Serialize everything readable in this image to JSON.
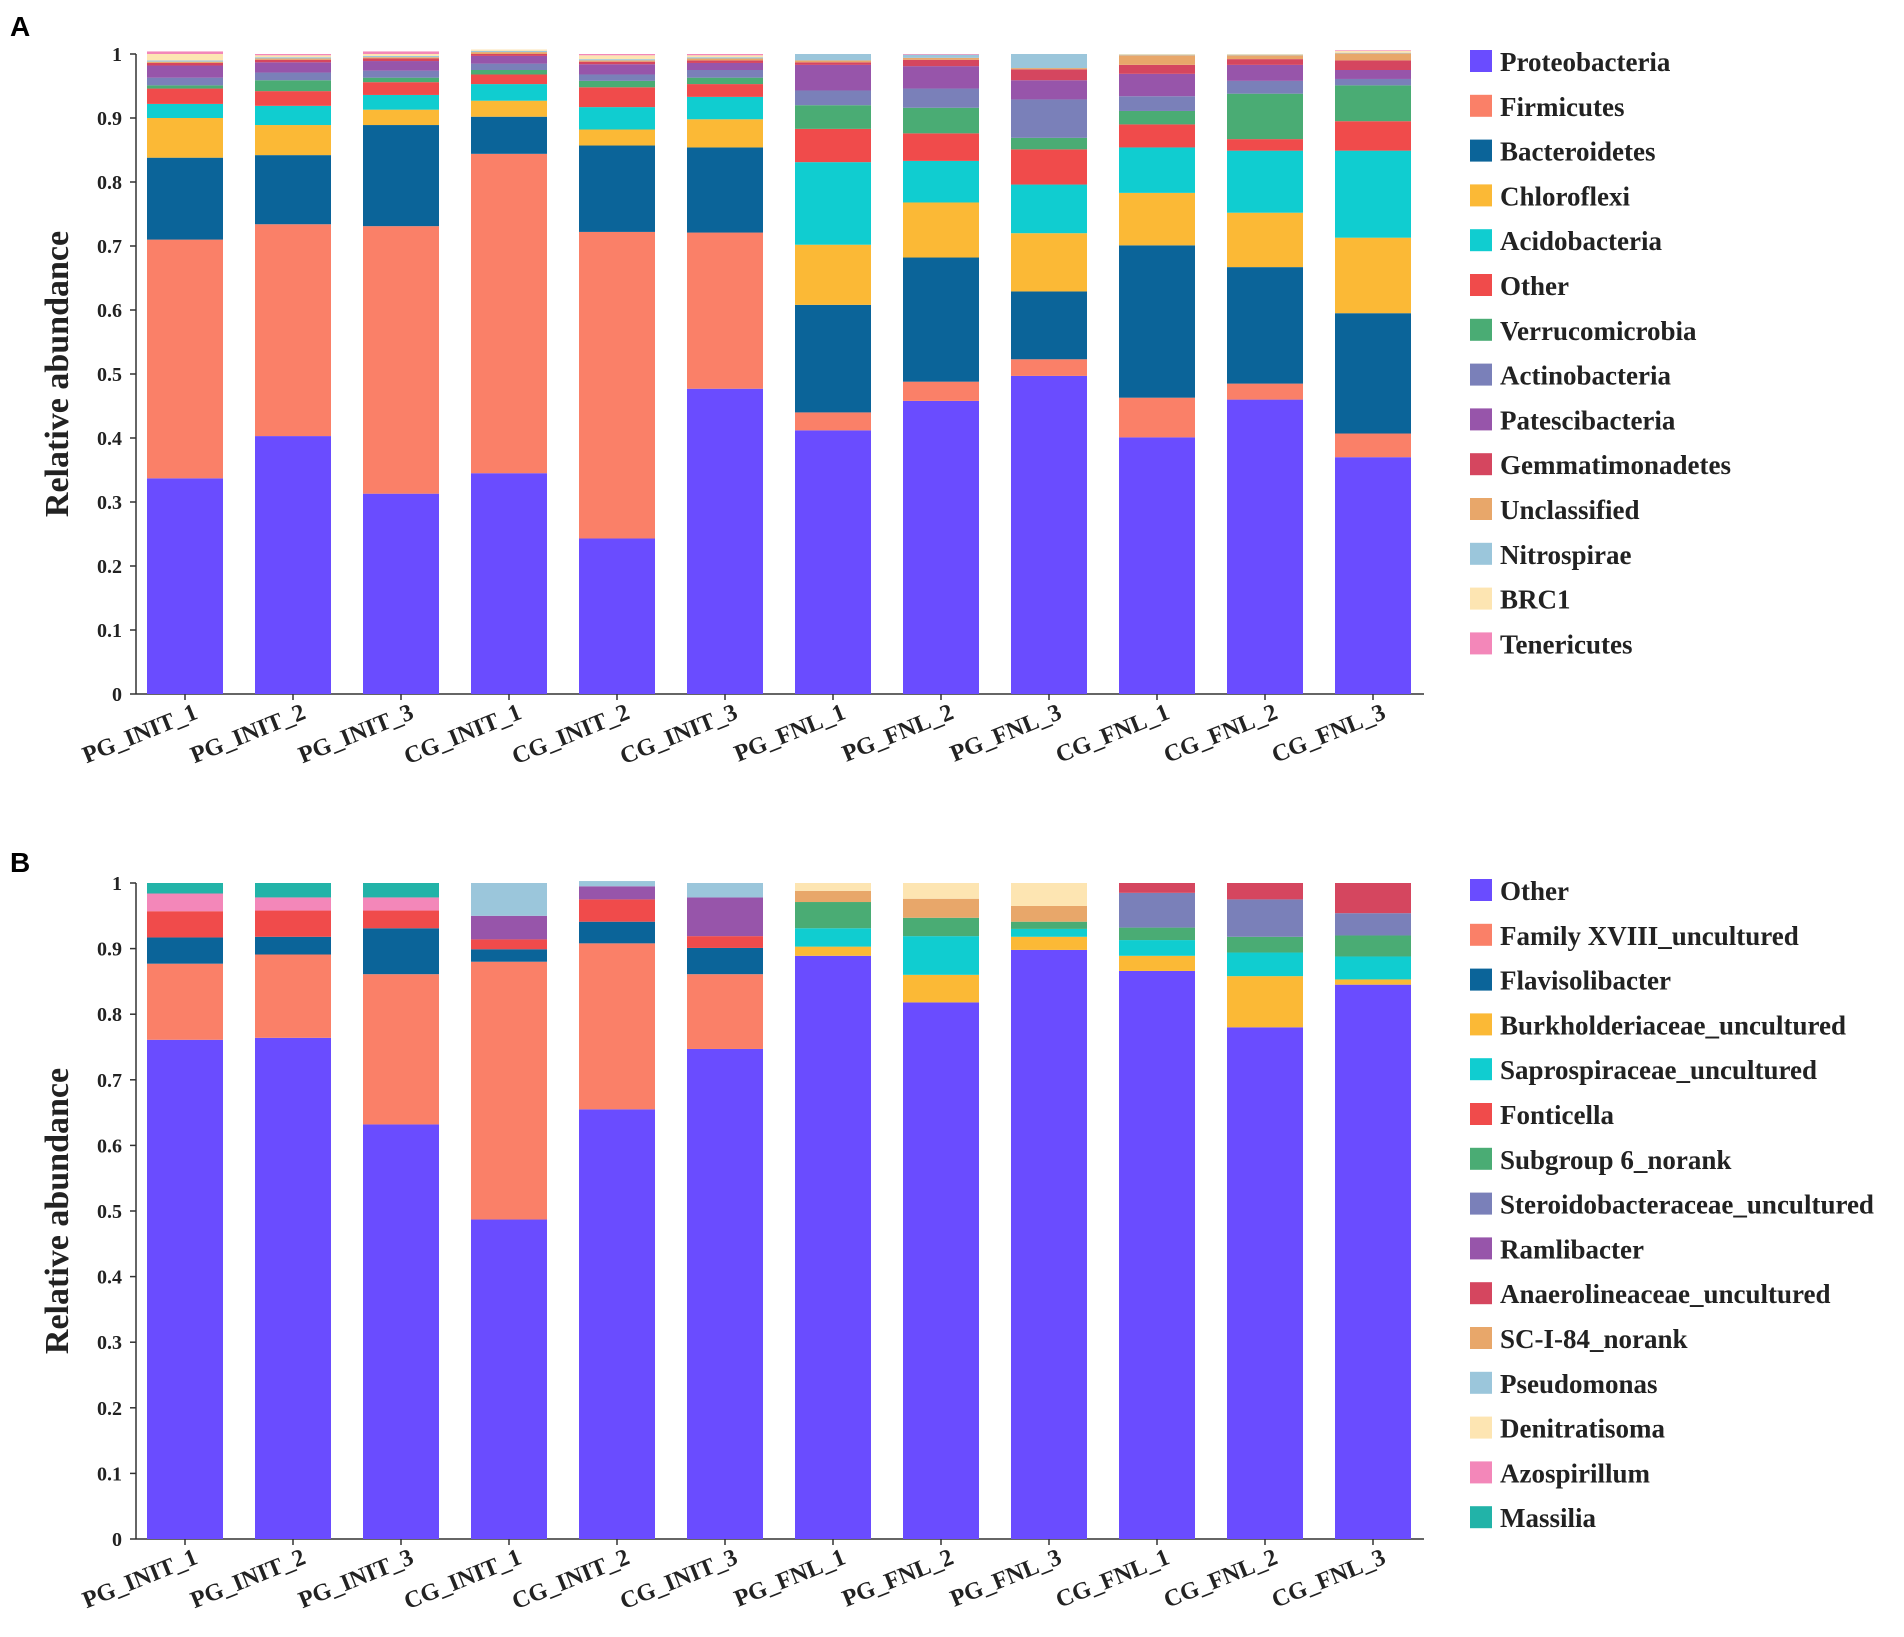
{
  "chart_data": [
    {
      "panel": "A",
      "type": "bar",
      "stacked": true,
      "ylabel": "Relative abundance",
      "ylim": [
        0,
        1
      ],
      "yticks": [
        "0",
        "0.1",
        "0.2",
        "0.3",
        "0.4",
        "0.5",
        "0.6",
        "0.7",
        "0.8",
        "0.9",
        "1"
      ],
      "categories": [
        "PG_INIT_1",
        "PG_INIT_2",
        "PG_INIT_3",
        "CG_INIT_1",
        "CG_INIT_2",
        "CG_INIT_3",
        "PG_FNL_1",
        "PG_FNL_2",
        "PG_FNL_3",
        "CG_FNL_1",
        "CG_FNL_2",
        "CG_FNL_3"
      ],
      "series": [
        {
          "name": "Proteobacteria",
          "color": "#6a4cff",
          "values": [
            0.337,
            0.403,
            0.313,
            0.345,
            0.243,
            0.477,
            0.412,
            0.458,
            0.497,
            0.401,
            0.46,
            0.37
          ]
        },
        {
          "name": "Firmicutes",
          "color": "#fa8068",
          "values": [
            0.373,
            0.331,
            0.418,
            0.499,
            0.479,
            0.244,
            0.028,
            0.03,
            0.026,
            0.062,
            0.025,
            0.037
          ]
        },
        {
          "name": "Bacteroidetes",
          "color": "#0b6499",
          "values": [
            0.128,
            0.108,
            0.158,
            0.058,
            0.135,
            0.133,
            0.168,
            0.194,
            0.106,
            0.238,
            0.182,
            0.188
          ]
        },
        {
          "name": "Chloroflexi",
          "color": "#fbb936",
          "values": [
            0.062,
            0.047,
            0.024,
            0.025,
            0.025,
            0.044,
            0.094,
            0.086,
            0.091,
            0.082,
            0.085,
            0.118
          ]
        },
        {
          "name": "Acidobacteria",
          "color": "#10cdd0",
          "values": [
            0.022,
            0.03,
            0.023,
            0.026,
            0.035,
            0.035,
            0.129,
            0.065,
            0.076,
            0.071,
            0.097,
            0.136
          ]
        },
        {
          "name": "Other",
          "color": "#f04b4b",
          "values": [
            0.024,
            0.023,
            0.02,
            0.015,
            0.031,
            0.02,
            0.052,
            0.043,
            0.055,
            0.036,
            0.018,
            0.046
          ]
        },
        {
          "name": "Verrucomicrobia",
          "color": "#4aac74",
          "values": [
            0.005,
            0.017,
            0.007,
            0.007,
            0.01,
            0.01,
            0.037,
            0.04,
            0.018,
            0.021,
            0.071,
            0.056
          ]
        },
        {
          "name": "Actinobacteria",
          "color": "#7a80b9",
          "values": [
            0.012,
            0.012,
            0.011,
            0.01,
            0.01,
            0.012,
            0.023,
            0.03,
            0.06,
            0.023,
            0.02,
            0.01
          ]
        },
        {
          "name": "Patescibacteria",
          "color": "#9755aa",
          "values": [
            0.019,
            0.016,
            0.015,
            0.012,
            0.016,
            0.011,
            0.04,
            0.035,
            0.03,
            0.035,
            0.025,
            0.014
          ]
        },
        {
          "name": "Gemmatimonadetes",
          "color": "#d5465f",
          "values": [
            0.004,
            0.004,
            0.004,
            0.003,
            0.004,
            0.004,
            0.004,
            0.01,
            0.017,
            0.014,
            0.009,
            0.015
          ]
        },
        {
          "name": "Unclassified",
          "color": "#e8a76a",
          "values": [
            0.002,
            0.002,
            0.002,
            0.003,
            0.002,
            0.003,
            0.003,
            0.003,
            0.002,
            0.015,
            0.006,
            0.011
          ]
        },
        {
          "name": "Nitrospirae",
          "color": "#9bc6db",
          "values": [
            0.002,
            0.002,
            0.002,
            0.002,
            0.002,
            0.002,
            0.01,
            0.005,
            0.022,
            0.001,
            0.001,
            0.001
          ]
        },
        {
          "name": "BRC1",
          "color": "#fde5b2",
          "values": [
            0.01,
            0.003,
            0.003,
            0.002,
            0.006,
            0.003,
            0.0,
            0.0,
            0.0,
            0.001,
            0.001,
            0.003
          ]
        },
        {
          "name": "Tenericutes",
          "color": "#f387b9",
          "values": [
            0.004,
            0.002,
            0.004,
            0.0,
            0.002,
            0.002,
            0.0,
            0.001,
            0.0,
            0.0,
            0.0,
            0.001
          ]
        }
      ]
    },
    {
      "panel": "B",
      "type": "bar",
      "stacked": true,
      "ylabel": "Relative abundance",
      "ylim": [
        0,
        1
      ],
      "yticks": [
        "0",
        "0.1",
        "0.2",
        "0.3",
        "0.4",
        "0.5",
        "0.6",
        "0.7",
        "0.8",
        "0.9",
        "1"
      ],
      "categories": [
        "PG_INIT_1",
        "PG_INIT_2",
        "PG_INIT_3",
        "CG_INIT_1",
        "CG_INIT_2",
        "CG_INIT_3",
        "PG_FNL_1",
        "PG_FNL_2",
        "PG_FNL_3",
        "CG_FNL_1",
        "CG_FNL_2",
        "CG_FNL_3"
      ],
      "series": [
        {
          "name": "Other",
          "color": "#6a4cff",
          "values": [
            0.761,
            0.764,
            0.632,
            0.487,
            0.655,
            0.747,
            0.889,
            0.818,
            0.898,
            0.866,
            0.78,
            0.845
          ]
        },
        {
          "name": "Family XVIII_uncultured",
          "color": "#fa8068",
          "values": [
            0.116,
            0.127,
            0.229,
            0.393,
            0.253,
            0.114,
            0.0,
            0.0,
            0.0,
            0.0,
            0.0,
            0.0
          ]
        },
        {
          "name": "Flavisolibacter",
          "color": "#0b6499",
          "values": [
            0.04,
            0.027,
            0.07,
            0.019,
            0.033,
            0.04,
            0.0,
            0.0,
            0.0,
            0.0,
            0.0,
            0.0
          ]
        },
        {
          "name": "Burkholderiaceae_uncultured",
          "color": "#fbb936",
          "values": [
            0.0,
            0.0,
            0.0,
            0.0,
            0.0,
            0.0,
            0.014,
            0.042,
            0.02,
            0.023,
            0.078,
            0.008
          ]
        },
        {
          "name": "Saprospiraceae_uncultured",
          "color": "#10cdd0",
          "values": [
            0.0,
            0.0,
            0.0,
            0.0,
            0.0,
            0.0,
            0.028,
            0.059,
            0.012,
            0.024,
            0.036,
            0.035
          ]
        },
        {
          "name": "Fonticella",
          "color": "#f04b4b",
          "values": [
            0.04,
            0.04,
            0.027,
            0.015,
            0.034,
            0.018,
            0.0,
            0.0,
            0.0,
            0.0,
            0.0,
            0.0
          ]
        },
        {
          "name": "Subgroup 6_norank",
          "color": "#4aac74",
          "values": [
            0.0,
            0.0,
            0.0,
            0.0,
            0.0,
            0.0,
            0.04,
            0.028,
            0.011,
            0.019,
            0.024,
            0.032
          ]
        },
        {
          "name": "Steroidobacteraceae_uncultured",
          "color": "#7a80b9",
          "values": [
            0.0,
            0.0,
            0.0,
            0.0,
            0.0,
            0.0,
            0.0,
            0.0,
            0.0,
            0.053,
            0.057,
            0.034
          ]
        },
        {
          "name": "Ramlibacter",
          "color": "#9755aa",
          "values": [
            0.0,
            0.0,
            0.0,
            0.036,
            0.02,
            0.059,
            0.0,
            0.0,
            0.0,
            0.0,
            0.0,
            0.0
          ]
        },
        {
          "name": "Anaerolineaceae_uncultured",
          "color": "#d5465f",
          "values": [
            0.0,
            0.0,
            0.0,
            0.0,
            0.0,
            0.0,
            0.0,
            0.0,
            0.0,
            0.015,
            0.025,
            0.046
          ]
        },
        {
          "name": "SC-I-84_norank",
          "color": "#e8a76a",
          "values": [
            0.0,
            0.0,
            0.0,
            0.0,
            0.0,
            0.0,
            0.017,
            0.029,
            0.024,
            0.0,
            0.0,
            0.0
          ]
        },
        {
          "name": "Pseudomonas",
          "color": "#9bc6db",
          "values": [
            0.0,
            0.0,
            0.0,
            0.05,
            0.008,
            0.022,
            0.0,
            0.0,
            0.0,
            0.0,
            0.0,
            0.0
          ]
        },
        {
          "name": "Denitratisoma",
          "color": "#fde5b2",
          "values": [
            0.0,
            0.0,
            0.0,
            0.0,
            0.0,
            0.0,
            0.012,
            0.024,
            0.035,
            0.0,
            0.0,
            0.0
          ]
        },
        {
          "name": "Azospirillum",
          "color": "#f387b9",
          "values": [
            0.027,
            0.02,
            0.02,
            0.0,
            0.0,
            0.0,
            0.0,
            0.0,
            0.0,
            0.0,
            0.0,
            0.0
          ]
        },
        {
          "name": "Massilia",
          "color": "#22b3a8",
          "values": [
            0.016,
            0.022,
            0.022,
            0.0,
            0.0,
            0.0,
            0.0,
            0.0,
            0.0,
            0.0,
            0.0,
            0.0
          ]
        }
      ]
    }
  ]
}
